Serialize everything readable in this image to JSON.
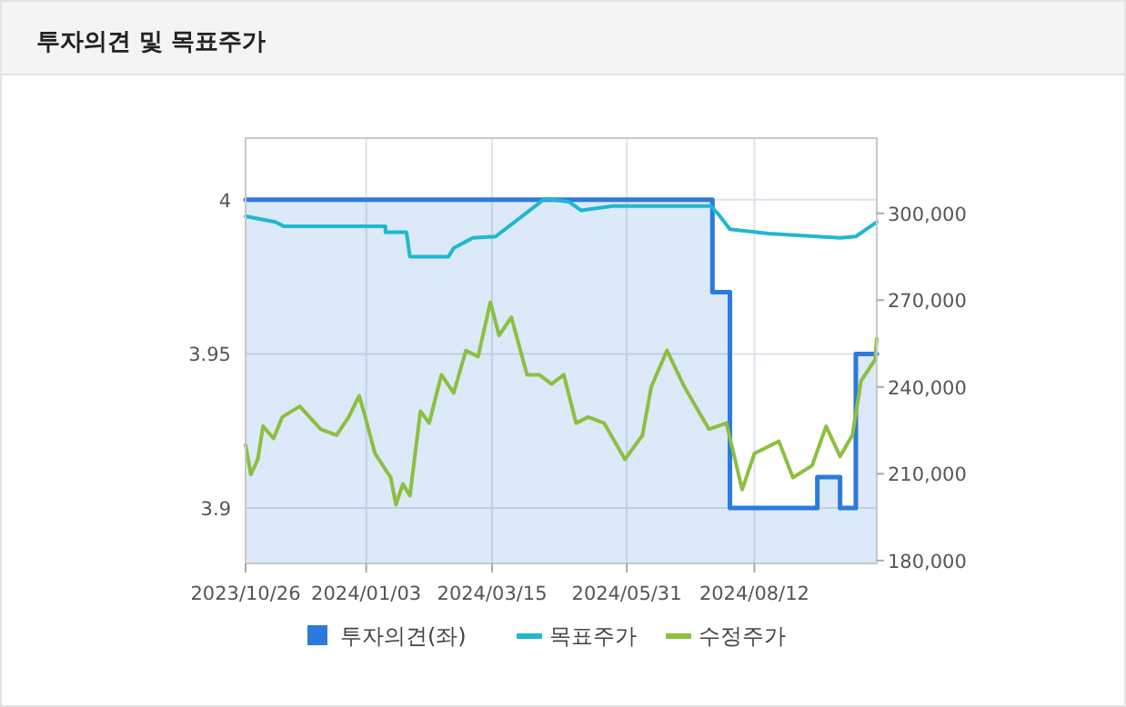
{
  "chart_data": {
    "type": "line",
    "title": "투자의견 및 목표주가",
    "xlim": [
      "2023-10-26",
      "2024-10-21"
    ],
    "xticks": [
      {
        "value": "2023-10-26",
        "label": "2023/10/26"
      },
      {
        "value": "2024-01-03",
        "label": "2024/01/03"
      },
      {
        "value": "2024-03-15",
        "label": "2024/03/15"
      },
      {
        "value": "2024-05-31",
        "label": "2024/05/31"
      },
      {
        "value": "2024-08-12",
        "label": "2024/08/12"
      }
    ],
    "ylim": [
      3.882,
      4.02
    ],
    "yticks": [
      3.9,
      3.95,
      4
    ],
    "y2lim": [
      179000,
      326000
    ],
    "y2ticks": [
      {
        "value": 180000,
        "label": "180,000"
      },
      {
        "value": 210000,
        "label": "210,000"
      },
      {
        "value": 240000,
        "label": "240,000"
      },
      {
        "value": 270000,
        "label": "270,000"
      },
      {
        "value": 300000,
        "label": "300,000"
      }
    ],
    "grid": true,
    "legend": "bottom",
    "series": [
      {
        "name": "투자의견(좌)",
        "type": "area",
        "color": "#2b7bde",
        "x": [
          "2023-10-26",
          "2024-07-19",
          "2024-07-19",
          "2024-07-29",
          "2024-07-29",
          "2024-09-17",
          "2024-09-17",
          "2024-09-30",
          "2024-09-30",
          "2024-10-09",
          "2024-10-09",
          "2024-10-21"
        ],
        "values": [
          4,
          4,
          3.97,
          3.97,
          3.9,
          3.9,
          3.91,
          3.91,
          3.9,
          3.9,
          3.95,
          3.95
        ]
      },
      {
        "name": "목표주가",
        "axis": "y2",
        "color": "#1fb8d0",
        "x": [
          "2023-10-26",
          "2023-11-12",
          "2023-11-17",
          "2024-01-14",
          "2024-01-14",
          "2024-01-26",
          "2024-01-28",
          "2024-02-19",
          "2024-02-22",
          "2024-03-04",
          "2024-03-17",
          "2024-03-30",
          "2024-04-14",
          "2024-04-28",
          "2024-05-05",
          "2024-05-23",
          "2024-07-18",
          "2024-07-22",
          "2024-07-29",
          "2024-08-20",
          "2024-09-30",
          "2024-10-09",
          "2024-10-21"
        ],
        "values": [
          299000,
          297000,
          295500,
          295500,
          293500,
          293500,
          285000,
          285000,
          288000,
          291500,
          292000,
          298000,
          305000,
          304000,
          301000,
          302500,
          302500,
          300000,
          294500,
          293000,
          291500,
          292000,
          297000
        ]
      },
      {
        "name": "수정주가",
        "axis": "y2",
        "color": "#8cbf3f",
        "x": [
          "2023-10-26",
          "2023-10-29",
          "2023-11-02",
          "2023-11-05",
          "2023-11-11",
          "2023-11-16",
          "2023-11-26",
          "2023-12-08",
          "2023-12-17",
          "2023-12-24",
          "2023-12-30",
          "2024-01-02",
          "2024-01-08",
          "2024-01-17",
          "2024-01-20",
          "2024-01-24",
          "2024-01-28",
          "2024-02-03",
          "2024-02-08",
          "2024-02-15",
          "2024-02-22",
          "2024-02-29",
          "2024-03-07",
          "2024-03-14",
          "2024-03-19",
          "2024-03-26",
          "2024-04-04",
          "2024-04-11",
          "2024-04-18",
          "2024-04-25",
          "2024-05-02",
          "2024-05-09",
          "2024-05-18",
          "2024-05-30",
          "2024-06-09",
          "2024-06-14",
          "2024-06-23",
          "2024-07-03",
          "2024-07-17",
          "2024-07-27",
          "2024-08-05",
          "2024-08-12",
          "2024-08-26",
          "2024-09-03",
          "2024-09-14",
          "2024-09-22",
          "2024-09-30",
          "2024-10-07",
          "2024-10-12",
          "2024-10-20",
          "2024-10-21"
        ],
        "values": [
          220000,
          209700,
          215000,
          226400,
          222200,
          229600,
          233300,
          225400,
          223300,
          229600,
          236900,
          230600,
          217000,
          208700,
          199300,
          206500,
          202400,
          231600,
          227500,
          244200,
          237900,
          252600,
          250500,
          269300,
          257800,
          264100,
          244200,
          244200,
          241000,
          244200,
          227500,
          229600,
          227500,
          215000,
          223300,
          240000,
          252600,
          240000,
          225400,
          227500,
          204500,
          217000,
          221200,
          208700,
          212800,
          226400,
          216000,
          223300,
          242100,
          249400,
          256700
        ]
      }
    ]
  }
}
